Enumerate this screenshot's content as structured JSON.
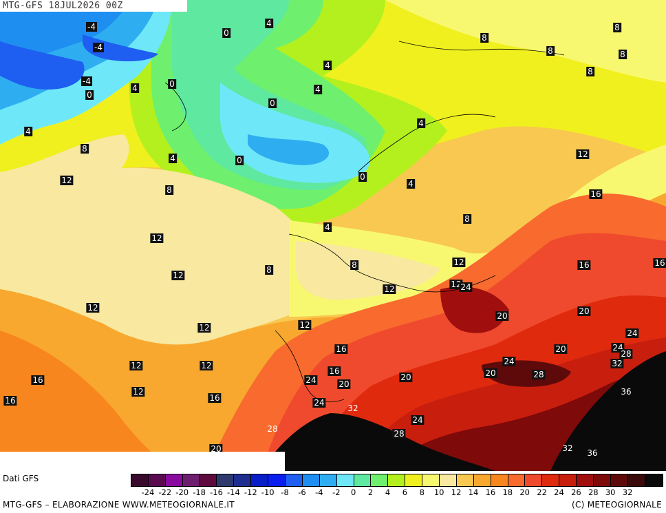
{
  "header": {
    "title": "MTG-GFS 18JUL2026 00Z"
  },
  "map": {
    "contour_labels": [
      {
        "text": "-4",
        "style": "dark",
        "lx": 133,
        "ly": 39
      },
      {
        "text": "-4",
        "style": "dark",
        "lx": 143,
        "ly": 69
      },
      {
        "text": "-4",
        "style": "dark",
        "lx": 126,
        "ly": 118
      },
      {
        "text": "0",
        "style": "dark",
        "lx": 130,
        "ly": 138
      },
      {
        "text": "0",
        "style": "dark",
        "lx": 329,
        "ly": 48
      },
      {
        "text": "0",
        "style": "dark",
        "lx": 250,
        "ly": 122
      },
      {
        "text": "0",
        "style": "dark",
        "lx": 396,
        "ly": 150
      },
      {
        "text": "0",
        "style": "dark",
        "lx": 348,
        "ly": 233
      },
      {
        "text": "0",
        "style": "dark",
        "lx": 527,
        "ly": 257
      },
      {
        "text": "4",
        "style": "dark",
        "lx": 391,
        "ly": 34
      },
      {
        "text": "4",
        "style": "dark",
        "lx": 476,
        "ly": 95
      },
      {
        "text": "4",
        "style": "dark",
        "lx": 462,
        "ly": 130
      },
      {
        "text": "4",
        "style": "dark",
        "lx": 196,
        "ly": 128
      },
      {
        "text": "4",
        "style": "dark",
        "lx": 41,
        "ly": 191
      },
      {
        "text": "4",
        "style": "dark",
        "lx": 251,
        "ly": 230
      },
      {
        "text": "4",
        "style": "dark",
        "lx": 612,
        "ly": 179
      },
      {
        "text": "4",
        "style": "dark",
        "lx": 597,
        "ly": 267
      },
      {
        "text": "4",
        "style": "dark",
        "lx": 476,
        "ly": 330
      },
      {
        "text": "8",
        "style": "dark",
        "lx": 704,
        "ly": 55
      },
      {
        "text": "8",
        "style": "dark",
        "lx": 897,
        "ly": 40
      },
      {
        "text": "8",
        "style": "dark",
        "lx": 800,
        "ly": 74
      },
      {
        "text": "8",
        "style": "dark",
        "lx": 905,
        "ly": 79
      },
      {
        "text": "8",
        "style": "dark",
        "lx": 858,
        "ly": 104
      },
      {
        "text": "8",
        "style": "dark",
        "lx": 123,
        "ly": 216
      },
      {
        "text": "8",
        "style": "dark",
        "lx": 246,
        "ly": 276
      },
      {
        "text": "8",
        "style": "dark",
        "lx": 679,
        "ly": 318
      },
      {
        "text": "8",
        "style": "dark",
        "lx": 391,
        "ly": 392
      },
      {
        "text": "8",
        "style": "dark",
        "lx": 515,
        "ly": 385
      },
      {
        "text": "12",
        "style": "dark",
        "lx": 97,
        "ly": 262
      },
      {
        "text": "12",
        "style": "dark",
        "lx": 847,
        "ly": 224
      },
      {
        "text": "12",
        "style": "dark",
        "lx": 228,
        "ly": 346
      },
      {
        "text": "12",
        "style": "dark",
        "lx": 259,
        "ly": 400
      },
      {
        "text": "12",
        "style": "dark",
        "lx": 667,
        "ly": 381
      },
      {
        "text": "12",
        "style": "dark",
        "lx": 566,
        "ly": 420
      },
      {
        "text": "12",
        "style": "dark",
        "lx": 663,
        "ly": 413
      },
      {
        "text": "12",
        "style": "dark",
        "lx": 135,
        "ly": 447
      },
      {
        "text": "12",
        "style": "dark",
        "lx": 297,
        "ly": 476
      },
      {
        "text": "12",
        "style": "dark",
        "lx": 443,
        "ly": 472
      },
      {
        "text": "12",
        "style": "dark",
        "lx": 198,
        "ly": 531
      },
      {
        "text": "12",
        "style": "dark",
        "lx": 300,
        "ly": 531
      },
      {
        "text": "12",
        "style": "dark",
        "lx": 201,
        "ly": 569
      },
      {
        "text": "16",
        "style": "dark",
        "lx": 866,
        "ly": 282
      },
      {
        "text": "16",
        "style": "dark",
        "lx": 849,
        "ly": 385
      },
      {
        "text": "16",
        "style": "dark",
        "lx": 959,
        "ly": 382
      },
      {
        "text": "16",
        "style": "dark",
        "lx": 496,
        "ly": 507
      },
      {
        "text": "16",
        "style": "dark",
        "lx": 486,
        "ly": 539
      },
      {
        "text": "16",
        "style": "dark",
        "lx": 55,
        "ly": 552
      },
      {
        "text": "16",
        "style": "dark",
        "lx": 15,
        "ly": 582
      },
      {
        "text": "16",
        "style": "dark",
        "lx": 312,
        "ly": 578
      },
      {
        "text": "20",
        "style": "dark",
        "lx": 730,
        "ly": 459
      },
      {
        "text": "20",
        "style": "dark",
        "lx": 849,
        "ly": 452
      },
      {
        "text": "20",
        "style": "dark",
        "lx": 815,
        "ly": 507
      },
      {
        "text": "20",
        "style": "dark",
        "lx": 500,
        "ly": 558
      },
      {
        "text": "20",
        "style": "dark",
        "lx": 590,
        "ly": 548
      },
      {
        "text": "20",
        "style": "dark",
        "lx": 713,
        "ly": 542
      },
      {
        "text": "20",
        "style": "dark",
        "lx": 314,
        "ly": 652
      },
      {
        "text": "24",
        "style": "dark",
        "lx": 677,
        "ly": 417
      },
      {
        "text": "24",
        "style": "dark",
        "lx": 919,
        "ly": 484
      },
      {
        "text": "24",
        "style": "dark",
        "lx": 898,
        "ly": 505
      },
      {
        "text": "24",
        "style": "dark",
        "lx": 740,
        "ly": 525
      },
      {
        "text": "24",
        "style": "dark",
        "lx": 452,
        "ly": 552
      },
      {
        "text": "24",
        "style": "dark",
        "lx": 464,
        "ly": 585
      },
      {
        "text": "24",
        "style": "dark",
        "lx": 607,
        "ly": 610
      },
      {
        "text": "28",
        "style": "dark",
        "lx": 910,
        "ly": 514
      },
      {
        "text": "28",
        "style": "dark",
        "lx": 783,
        "ly": 544
      },
      {
        "text": "28",
        "style": "dark",
        "lx": 580,
        "ly": 630
      },
      {
        "text": "28",
        "style": "light",
        "lx": 396,
        "ly": 623
      },
      {
        "text": "32",
        "style": "dark",
        "lx": 897,
        "ly": 528
      },
      {
        "text": "32",
        "style": "light",
        "lx": 513,
        "ly": 593
      },
      {
        "text": "32",
        "style": "light",
        "lx": 825,
        "ly": 651
      },
      {
        "text": "36",
        "style": "light",
        "lx": 910,
        "ly": 569
      },
      {
        "text": "36",
        "style": "light",
        "lx": 861,
        "ly": 658
      }
    ]
  },
  "legend": {
    "source_label": "Dati GFS",
    "colors": [
      "#3a0a2e",
      "#5a0a4e",
      "#8a0aa0",
      "#6e1e6e",
      "#5e0a3e",
      "#2e3a6e",
      "#1e2e8e",
      "#0a1ec8",
      "#0a1ef0",
      "#1e5ef0",
      "#1e8ef0",
      "#2eaef0",
      "#6ee8f8",
      "#5ee8a0",
      "#6ef06e",
      "#b4f01e",
      "#f0f01e",
      "#f8f870",
      "#f8e8a0",
      "#f8c850",
      "#f8a82e",
      "#f8861e",
      "#f86a2e",
      "#f04a2e",
      "#e02a0e",
      "#c81e0e",
      "#a00e0e",
      "#7e0a0a",
      "#5e0a0a",
      "#3a0a0a",
      "#0a0a0a"
    ],
    "tick_labels": [
      "-24",
      "-22",
      "-20",
      "-18",
      "-16",
      "-14",
      "-12",
      "-10",
      "-8",
      "-6",
      "-4",
      "-2",
      "0",
      "2",
      "4",
      "6",
      "8",
      "10",
      "12",
      "14",
      "16",
      "18",
      "20",
      "22",
      "24",
      "26",
      "28",
      "30",
      "32"
    ]
  },
  "footer": {
    "credit_left": "MTG-GFS – ELABORAZIONE WWW.METEOGIORNALE.IT",
    "credit_right": "(C) METEOGIORNALE"
  }
}
